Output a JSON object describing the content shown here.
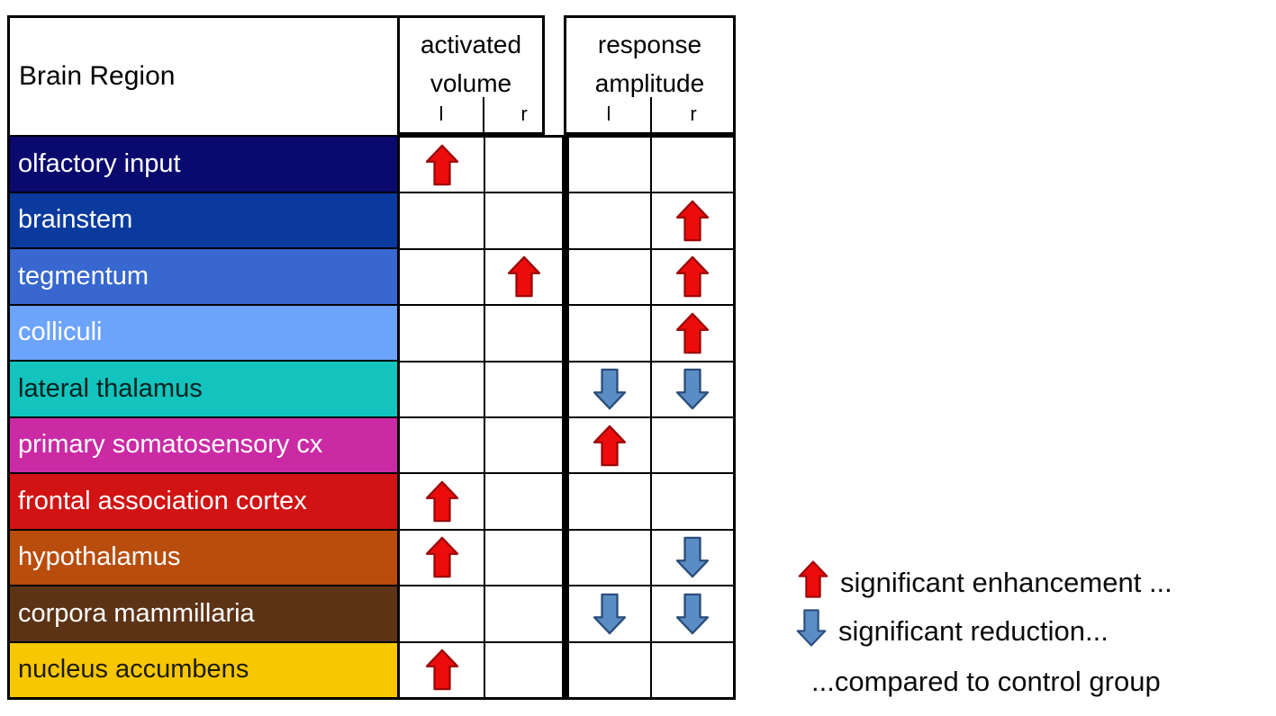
{
  "chart_data": {
    "type": "table",
    "header": {
      "brain_region": "Brain Region",
      "groups": [
        {
          "label": [
            "activated",
            "volume"
          ],
          "sub": [
            "l",
            "r"
          ]
        },
        {
          "label": [
            "response",
            "amplitude"
          ],
          "sub": [
            "l",
            "r"
          ]
        }
      ],
      "columns": [
        "activated volume l",
        "activated volume r",
        "response amplitude l",
        "response amplitude r"
      ]
    },
    "rows": [
      {
        "label": "olfactory input",
        "color": "#0a0a6e",
        "text_color": "#ffffff",
        "cells": [
          "up",
          "",
          "",
          ""
        ]
      },
      {
        "label": "brainstem",
        "color": "#0a3a9e",
        "text_color": "#ffffff",
        "cells": [
          "",
          "",
          "",
          "up"
        ]
      },
      {
        "label": "tegmentum",
        "color": "#3767cf",
        "text_color": "#ffffff",
        "cells": [
          "",
          "up",
          "",
          "up"
        ]
      },
      {
        "label": "colliculi",
        "color": "#6da4fb",
        "text_color": "#ffffff",
        "cells": [
          "",
          "",
          "",
          "up"
        ]
      },
      {
        "label": "lateral thalamus",
        "color": "#12c4bd",
        "text_color": "#00201e",
        "cells": [
          "",
          "",
          "down",
          "down"
        ]
      },
      {
        "label": "primary somatosensory cx",
        "color": "#cb2aa5",
        "text_color": "#ffffff",
        "cells": [
          "",
          "",
          "up",
          ""
        ]
      },
      {
        "label": "frontal association cortex",
        "color": "#d11313",
        "text_color": "#ffffff",
        "cells": [
          "up",
          "",
          "",
          ""
        ]
      },
      {
        "label": "hypothalamus",
        "color": "#b84d0d",
        "text_color": "#ffffff",
        "cells": [
          "up",
          "",
          "",
          "down"
        ]
      },
      {
        "label": "corpora mammillaria",
        "color": "#5d3316",
        "text_color": "#ffffff",
        "cells": [
          "",
          "",
          "down",
          "down"
        ]
      },
      {
        "label": "nucleus accumbens",
        "color": "#f8c703",
        "text_color": "#1c1c00",
        "cells": [
          "up",
          "",
          "",
          ""
        ]
      }
    ]
  },
  "legend": {
    "items": [
      {
        "icon": "up-arrow",
        "text": "significant enhancement ..."
      },
      {
        "icon": "down-arrow",
        "text": "significant reduction..."
      }
    ],
    "note": "...compared to control group"
  },
  "colors": {
    "enhancement_fill": "#ed0c0c",
    "enhancement_stroke": "#9d0606",
    "reduction_fill": "#5b8dc5",
    "reduction_stroke": "#2b4d7b",
    "grid_line": "#000000"
  }
}
